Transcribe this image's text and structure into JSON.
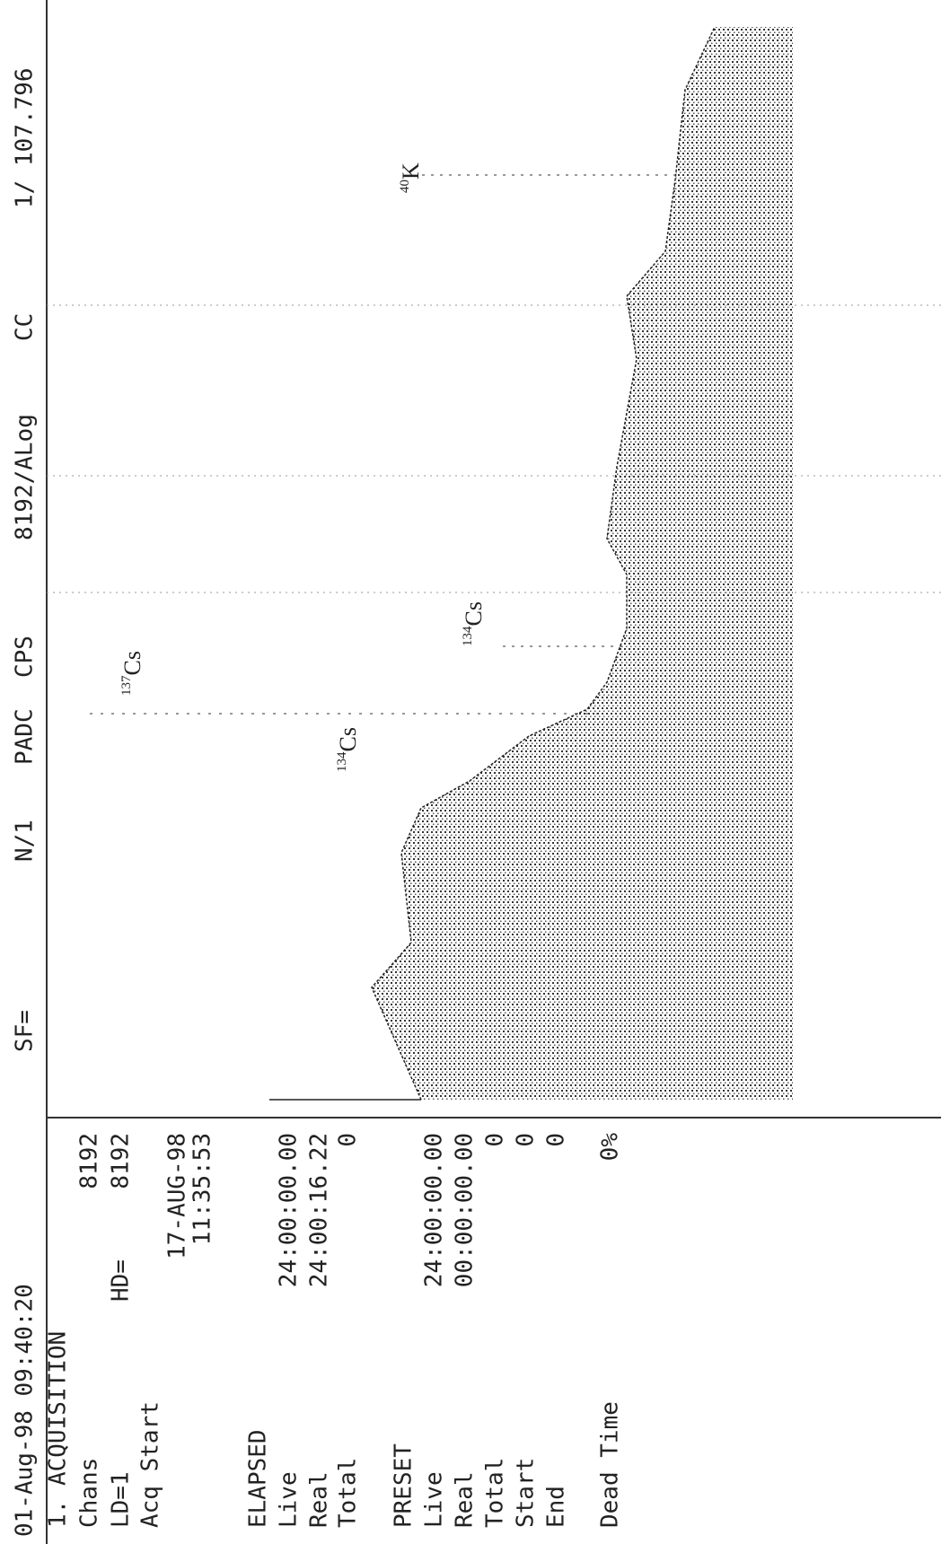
{
  "header": {
    "items": [
      "01-Aug-98 09:40:20",
      "SF=",
      "N/1",
      "PADC",
      "CPS",
      "8192/ALog",
      "CC",
      "1/",
      "107.796"
    ]
  },
  "panel": {
    "rows": [
      {
        "left": "1. ACQUISITION"
      },
      {
        "left": "Chans",
        "right": "8192"
      },
      {
        "left": "LD=1",
        "mid": "HD=",
        "right": "8192"
      },
      {
        "left": "Acq Start"
      },
      {
        "right": "17-AUG-98"
      },
      {
        "right": "11:35:53"
      },
      {
        "left": "ELAPSED"
      },
      {
        "left": "Live",
        "right": "24:00:00.00"
      },
      {
        "left": "Real",
        "right": "24:00:16.22"
      },
      {
        "left": "Total",
        "right": "0"
      },
      {
        "left": "PRESET"
      },
      {
        "left": "Live",
        "right": "24:00:00.00"
      },
      {
        "left": "Real",
        "right": "00:00:00.00"
      },
      {
        "left": "Total",
        "right": "0"
      },
      {
        "left": "Start",
        "right": "0"
      },
      {
        "left": "End",
        "right": "0"
      },
      {
        "left": "Dead Time",
        "right": "0%"
      }
    ]
  },
  "peaks": [
    {
      "mass": "137",
      "element": "Cs"
    },
    {
      "mass": "134",
      "element": "Cs"
    },
    {
      "mass": "134",
      "element": "Cs"
    },
    {
      "mass": "40",
      "element": "K"
    }
  ]
}
